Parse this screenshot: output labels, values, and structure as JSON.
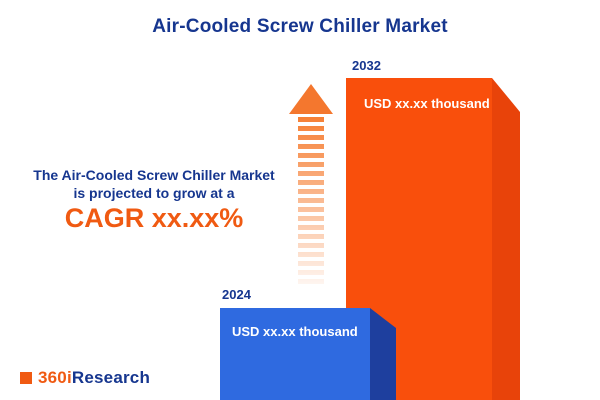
{
  "title": "Air-Cooled Screw Chiller Market",
  "growth_text": {
    "line1": "The Air-Cooled Screw Chiller Market",
    "line2": "is projected to grow at a",
    "cagr": "CAGR xx.xx%"
  },
  "chart_data": {
    "type": "bar",
    "categories": [
      "2024",
      "2032"
    ],
    "values": [
      null,
      null
    ],
    "value_labels": [
      "USD xx.xx thousand",
      "USD xx.xx thousand"
    ],
    "title": "Air-Cooled Screw Chiller Market",
    "xlabel": "",
    "ylabel": "",
    "legend": false,
    "grid": false,
    "bar_colors": [
      "#2f6ae0",
      "#f94f0c"
    ],
    "bar_side_colors": [
      "#1e3f9e",
      "#e8430a"
    ],
    "notes": "Values are masked placeholders (xx.xx). 2032 bar drawn roughly 3.5x the visible height of the 2024 bar; both bars run off the bottom edge of the image; 3D extruded style with upward dashed growth arrow."
  },
  "logo": {
    "prefix": "360i",
    "suffix": "Research"
  },
  "colors": {
    "navy": "#16368f",
    "orange_accent": "#f05a12",
    "bar_blue": "#2f6ae0",
    "bar_blue_side": "#1e3f9e",
    "bar_orange": "#f94f0c",
    "bar_orange_side": "#e8430a",
    "arrow_orange": "#f4772e"
  }
}
